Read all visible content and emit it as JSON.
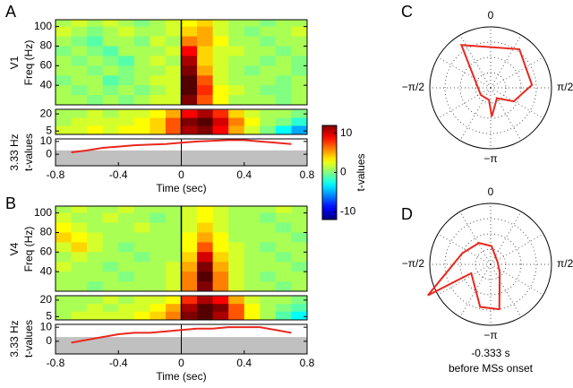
{
  "chart_data": [
    {
      "type": "heatmap",
      "panel": "A",
      "row_label": "V1",
      "ylabel": "Freq (Hz)",
      "x": [
        -0.75,
        -0.65,
        -0.55,
        -0.45,
        -0.35,
        -0.25,
        -0.15,
        -0.05,
        0.05,
        0.15,
        0.25,
        0.35,
        0.45,
        0.55,
        0.65,
        0.75
      ],
      "y": [
        105,
        95,
        85,
        75,
        65,
        55,
        45,
        35,
        25
      ],
      "z": [
        [
          1,
          2,
          1,
          2,
          1,
          0,
          1,
          2,
          3,
          4,
          2,
          1,
          1,
          0,
          1,
          1
        ],
        [
          2,
          1,
          0,
          1,
          2,
          1,
          1,
          2,
          4,
          5,
          2,
          1,
          0,
          1,
          1,
          2
        ],
        [
          1,
          0,
          -1,
          1,
          1,
          0,
          2,
          1,
          6,
          5,
          3,
          1,
          1,
          0,
          1,
          1
        ],
        [
          0,
          1,
          0,
          -1,
          1,
          1,
          1,
          2,
          9,
          4,
          2,
          2,
          1,
          1,
          0,
          1
        ],
        [
          1,
          0,
          1,
          0,
          -1,
          1,
          2,
          1,
          11,
          4,
          2,
          1,
          1,
          0,
          1,
          0
        ],
        [
          1,
          1,
          0,
          1,
          0,
          1,
          1,
          2,
          12,
          5,
          2,
          1,
          0,
          1,
          1,
          0
        ],
        [
          0,
          1,
          1,
          -1,
          0,
          1,
          2,
          2,
          13,
          7,
          2,
          1,
          1,
          1,
          0,
          1
        ],
        [
          1,
          0,
          1,
          0,
          1,
          0,
          1,
          2,
          13,
          8,
          3,
          2,
          1,
          0,
          0,
          1
        ],
        [
          1,
          1,
          0,
          1,
          0,
          1,
          2,
          2,
          12,
          7,
          3,
          1,
          1,
          1,
          0,
          1
        ]
      ],
      "xlim": [
        -0.8,
        0.8
      ],
      "ylim": [
        20,
        107
      ],
      "yticks": [
        40,
        60,
        80,
        100
      ],
      "vline": 0
    },
    {
      "type": "heatmap",
      "x": [
        -0.75,
        -0.65,
        -0.55,
        -0.45,
        -0.35,
        -0.25,
        -0.15,
        -0.05,
        0.05,
        0.15,
        0.25,
        0.35,
        0.45,
        0.55,
        0.65,
        0.75
      ],
      "y": [
        20,
        13,
        6
      ],
      "z": [
        [
          1,
          1,
          2,
          1,
          2,
          2,
          3,
          5,
          9,
          11,
          8,
          4,
          2,
          1,
          1,
          0
        ],
        [
          1,
          2,
          2,
          2,
          2,
          3,
          4,
          7,
          12,
          13,
          10,
          6,
          3,
          1,
          0,
          -2
        ],
        [
          2,
          2,
          3,
          2,
          3,
          3,
          4,
          7,
          11,
          12,
          9,
          5,
          2,
          0,
          -3,
          -5
        ]
      ],
      "xlim": [
        -0.8,
        0.8
      ],
      "ylim": [
        2,
        24
      ],
      "yticks": [
        5,
        20
      ],
      "vline": 0
    },
    {
      "type": "line",
      "row_label": "3.33 Hz",
      "ylabel": "t-values",
      "xlabel": "Time (sec)",
      "x": [
        -0.7,
        -0.6,
        -0.5,
        -0.4,
        -0.3,
        -0.2,
        -0.1,
        0,
        0.1,
        0.2,
        0.3,
        0.4,
        0.5,
        0.6,
        0.7
      ],
      "values": [
        1.5,
        3,
        5,
        6,
        7,
        7.5,
        8,
        9,
        10,
        10.5,
        11,
        11,
        10,
        9,
        8
      ],
      "color": "#e8281f",
      "shaded_below": 3,
      "xlim": [
        -0.8,
        0.8
      ],
      "ylim": [
        -9,
        12
      ],
      "xticks": [
        -0.8,
        -0.4,
        0,
        0.4,
        0.8
      ],
      "yticks": [
        0,
        10
      ],
      "vline": 0
    },
    {
      "type": "colorbar",
      "label": "t-values",
      "colormap": "jet",
      "clim": [
        -12,
        12
      ],
      "ticks": [
        10,
        0,
        -10
      ]
    },
    {
      "type": "heatmap",
      "panel": "B",
      "row_label": "V4",
      "ylabel": "Freq (Hz)",
      "x": [
        -0.75,
        -0.65,
        -0.55,
        -0.45,
        -0.35,
        -0.25,
        -0.15,
        -0.05,
        0.05,
        0.15,
        0.25,
        0.35,
        0.45,
        0.55,
        0.65,
        0.75
      ],
      "y": [
        105,
        95,
        85,
        75,
        65,
        55,
        45,
        35,
        25
      ],
      "z": [
        [
          1,
          2,
          1,
          1,
          2,
          1,
          1,
          1,
          2,
          3,
          2,
          1,
          1,
          1,
          2,
          1
        ],
        [
          2,
          1,
          1,
          2,
          1,
          1,
          0,
          1,
          2,
          3,
          2,
          1,
          1,
          0,
          1,
          1
        ],
        [
          3,
          2,
          1,
          1,
          1,
          2,
          1,
          1,
          2,
          4,
          2,
          1,
          1,
          1,
          0,
          1
        ],
        [
          4,
          3,
          2,
          1,
          1,
          1,
          1,
          1,
          3,
          5,
          3,
          1,
          1,
          1,
          1,
          0
        ],
        [
          2,
          4,
          2,
          1,
          0,
          1,
          1,
          1,
          3,
          7,
          3,
          2,
          1,
          0,
          1,
          1
        ],
        [
          1,
          2,
          1,
          1,
          1,
          0,
          1,
          1,
          4,
          10,
          4,
          2,
          1,
          1,
          0,
          1
        ],
        [
          2,
          1,
          1,
          0,
          1,
          1,
          1,
          2,
          5,
          12,
          5,
          2,
          1,
          1,
          1,
          0
        ],
        [
          1,
          1,
          1,
          1,
          0,
          1,
          1,
          2,
          6,
          13,
          6,
          2,
          1,
          0,
          1,
          1
        ],
        [
          1,
          1,
          0,
          1,
          1,
          1,
          1,
          2,
          6,
          12,
          6,
          2,
          1,
          1,
          0,
          1
        ]
      ],
      "xlim": [
        -0.8,
        0.8
      ],
      "ylim": [
        20,
        107
      ],
      "yticks": [
        40,
        60,
        80,
        100
      ],
      "vline": 0
    },
    {
      "type": "heatmap",
      "x": [
        -0.75,
        -0.65,
        -0.55,
        -0.45,
        -0.35,
        -0.25,
        -0.15,
        -0.05,
        0.05,
        0.15,
        0.25,
        0.35,
        0.45,
        0.55,
        0.65,
        0.75
      ],
      "y": [
        20,
        13,
        6
      ],
      "z": [
        [
          1,
          1,
          1,
          2,
          1,
          2,
          2,
          3,
          8,
          11,
          9,
          5,
          2,
          1,
          1,
          0
        ],
        [
          1,
          1,
          2,
          1,
          2,
          2,
          3,
          5,
          11,
          13,
          12,
          7,
          3,
          1,
          0,
          -1
        ],
        [
          1,
          2,
          2,
          2,
          2,
          3,
          4,
          6,
          12,
          13,
          11,
          7,
          3,
          1,
          -1,
          -3
        ]
      ],
      "xlim": [
        -0.8,
        0.8
      ],
      "ylim": [
        2,
        24
      ],
      "yticks": [
        5,
        20
      ],
      "vline": 0
    },
    {
      "type": "line",
      "row_label": "3.33 Hz",
      "ylabel": "t-values",
      "xlabel": "Time (sec)",
      "x": [
        -0.7,
        -0.6,
        -0.5,
        -0.4,
        -0.3,
        -0.2,
        -0.1,
        0,
        0.1,
        0.2,
        0.3,
        0.4,
        0.5,
        0.6,
        0.7
      ],
      "values": [
        -1,
        1,
        3,
        5,
        6,
        6,
        7,
        8,
        9,
        9,
        10,
        10,
        10,
        8,
        6
      ],
      "color": "#e8281f",
      "shaded_below": 3,
      "xlim": [
        -0.8,
        0.8
      ],
      "ylim": [
        -9,
        12
      ],
      "xticks": [
        -0.8,
        -0.4,
        0,
        0.4,
        0.8
      ],
      "yticks": [
        0,
        10
      ],
      "vline": 0
    },
    {
      "type": "polar",
      "panel": "C",
      "color": "#e8281f",
      "theta": [
        -0.6,
        0.64,
        1.5,
        2.1,
        2.6,
        3.1,
        -3.0,
        -2.2
      ],
      "r": [
        0.85,
        0.79,
        0.68,
        0.44,
        0.2,
        0.47,
        0.2,
        0.2
      ],
      "rlim": [
        0,
        1
      ],
      "rticks": [
        0.25,
        0.5,
        0.75
      ],
      "thetaticks": [
        0,
        {
          "value": 1.5708,
          "label": "π/2"
        },
        {
          "value": -3.1416,
          "label": "−π"
        },
        {
          "value": -1.5708,
          "label": "−π/2"
        }
      ]
    },
    {
      "type": "polar",
      "panel": "D",
      "color": "#e8281f",
      "caption": [
        "-0.333 s",
        "before MSs onset"
      ],
      "theta": [
        -0.5,
        0.05,
        1.3,
        2.3,
        2.95,
        -2.9,
        -2.0,
        -2.03,
        -1.2
      ],
      "r": [
        0.4,
        0.3,
        0.12,
        0.2,
        0.75,
        0.72,
        0.35,
        1.15,
        0.5
      ],
      "rlim": [
        0,
        1
      ],
      "rticks": [
        0.25,
        0.5,
        0.75
      ],
      "thetaticks": [
        0,
        {
          "value": 1.5708,
          "label": "π/2"
        },
        {
          "value": -3.1416,
          "label": "−π"
        },
        {
          "value": -1.5708,
          "label": "−π/2"
        }
      ]
    }
  ]
}
